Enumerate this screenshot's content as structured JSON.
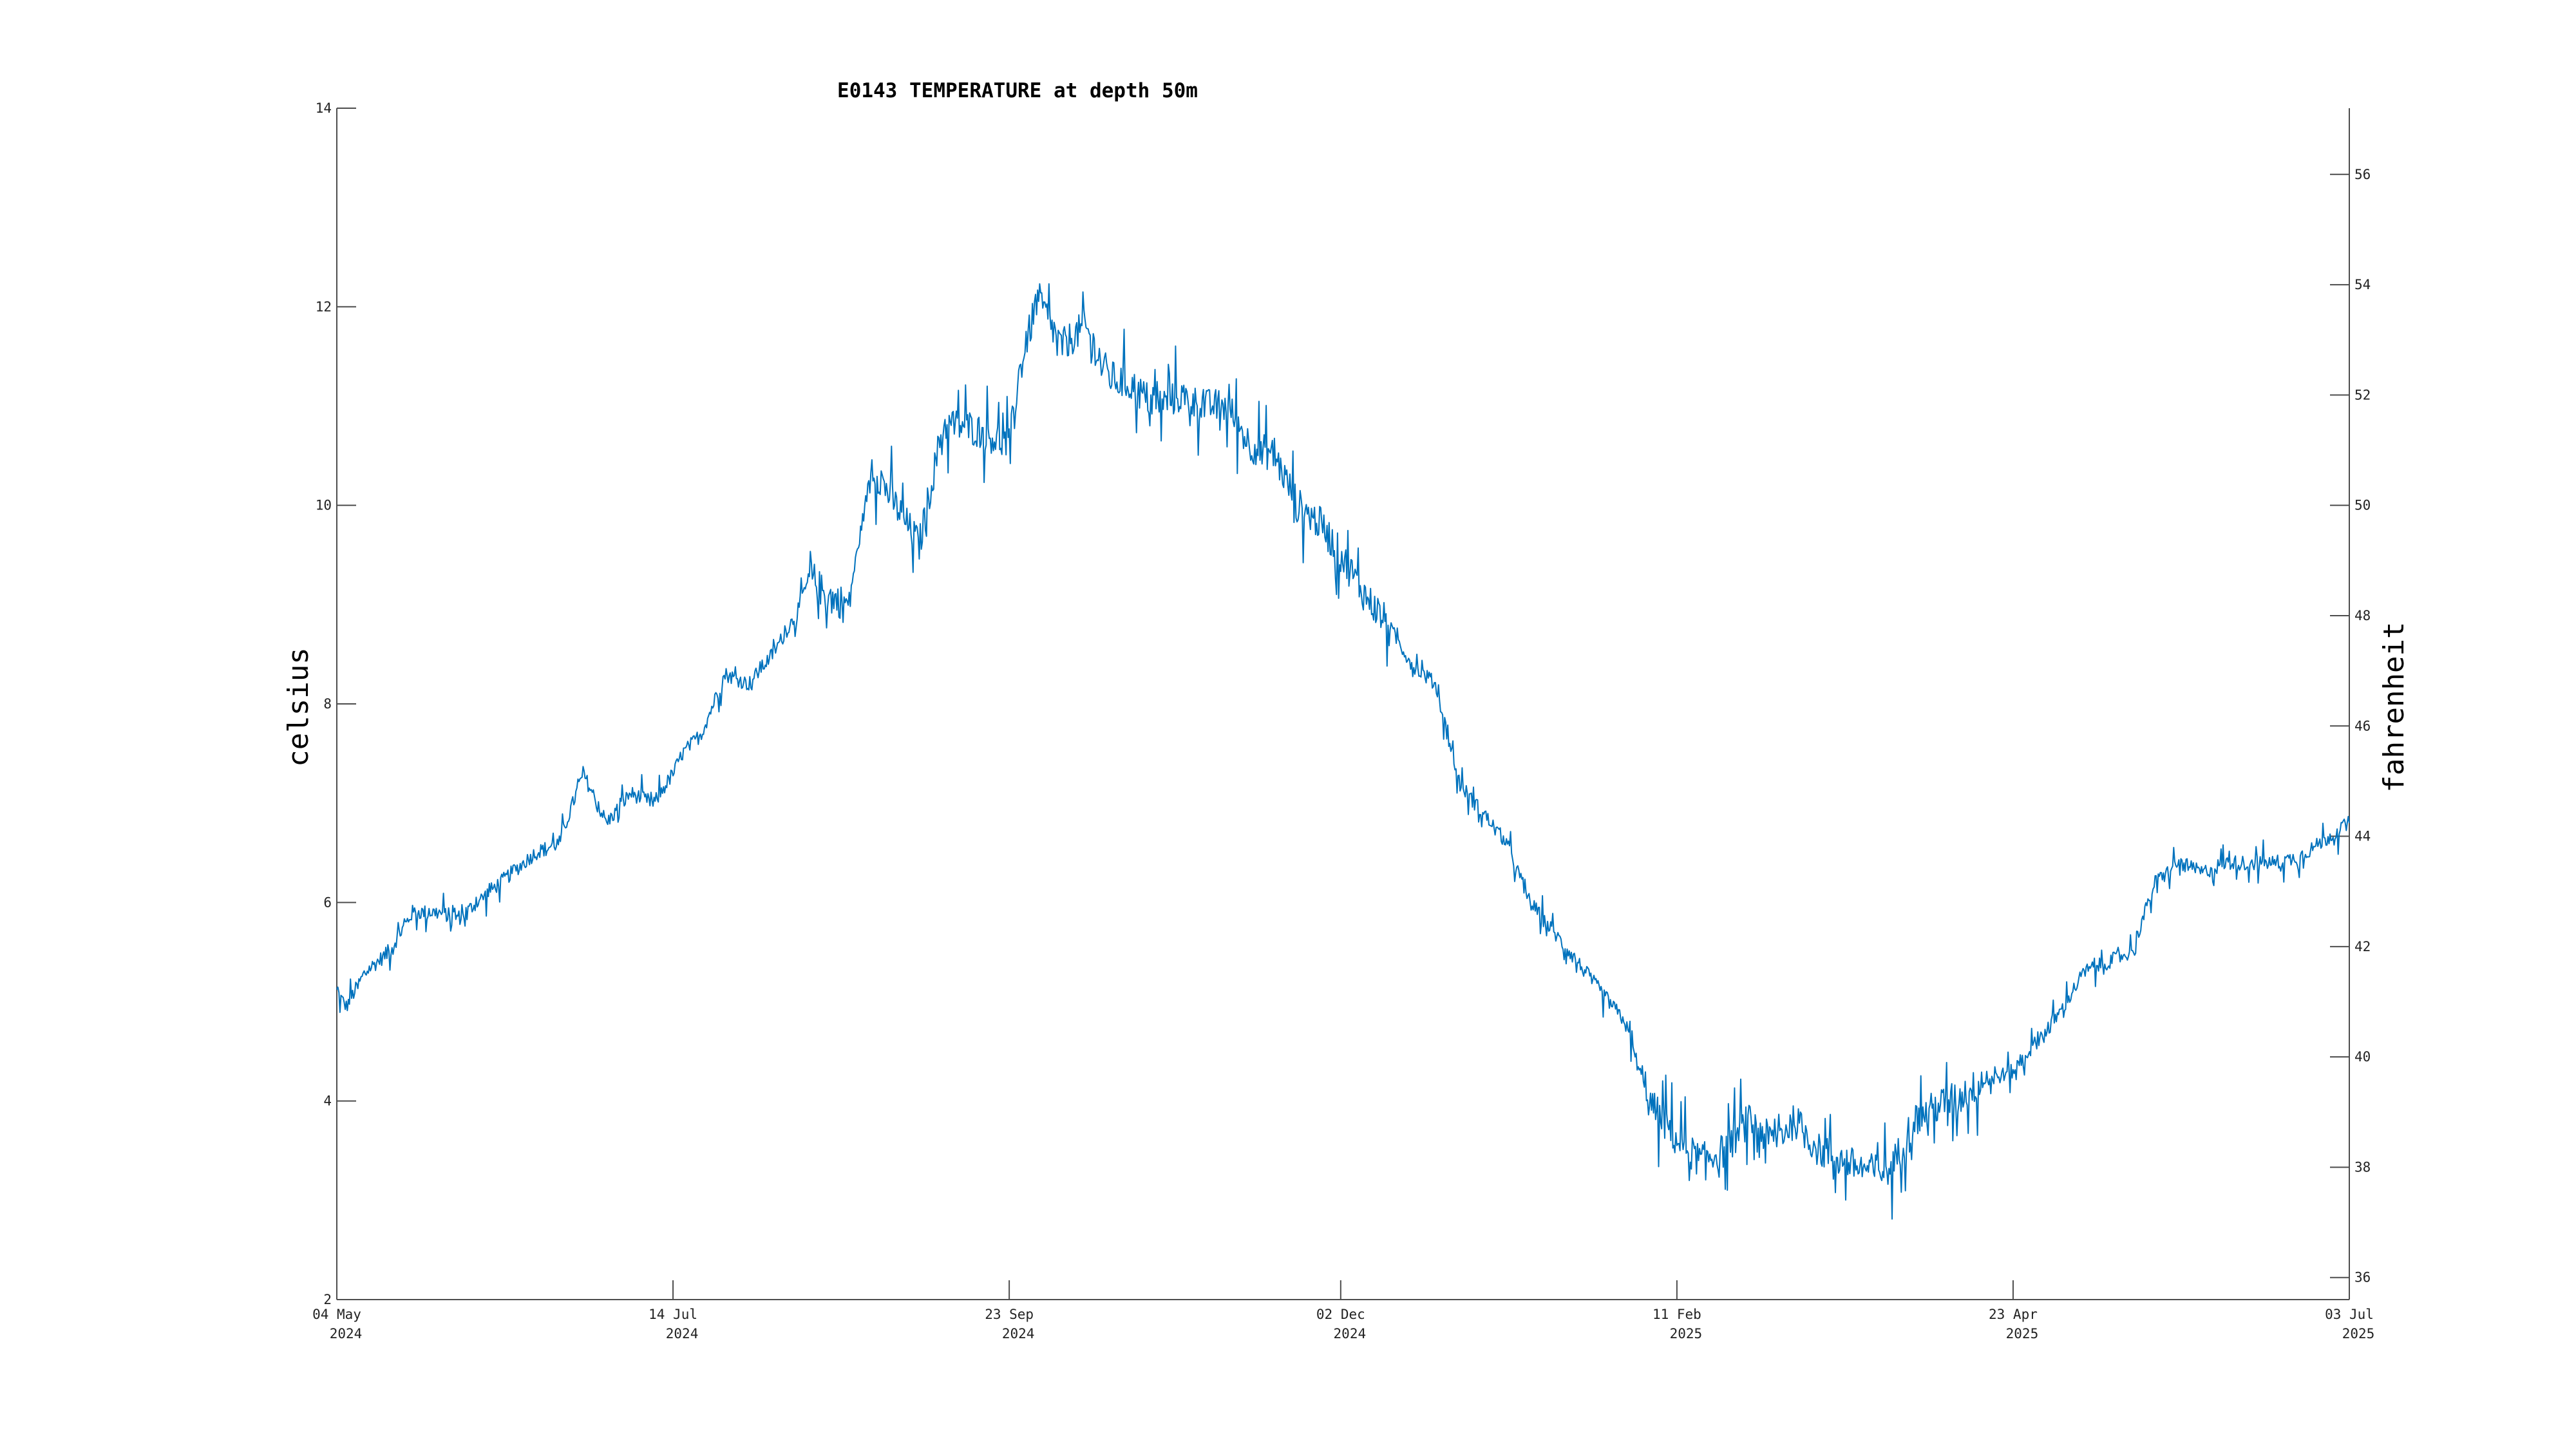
{
  "chart_data": {
    "type": "line",
    "title": "E0143 TEMPERATURE at depth 50m",
    "ylabel": "celsius",
    "y2label": "fahrenheit",
    "xlabel": "",
    "grid": false,
    "ylim": [
      2,
      14
    ],
    "y2lim": [
      35.6,
      57.2
    ],
    "xlim": [
      "2024-05-04",
      "2025-07-03"
    ],
    "yticks": [
      "2",
      "4",
      "6",
      "8",
      "10",
      "12",
      "14"
    ],
    "y2ticks": [
      "36",
      "38",
      "40",
      "42",
      "44",
      "46",
      "48",
      "50",
      "52",
      "54",
      "56"
    ],
    "xticks": [
      {
        "date": "2024-05-04",
        "line1": "04 May",
        "line2": "2024"
      },
      {
        "date": "2024-07-14",
        "line1": "14 Jul",
        "line2": "2024"
      },
      {
        "date": "2024-09-23",
        "line1": "23 Sep",
        "line2": "2024"
      },
      {
        "date": "2024-12-02",
        "line1": "02 Dec",
        "line2": "2024"
      },
      {
        "date": "2025-02-11",
        "line1": "11 Feb",
        "line2": "2025"
      },
      {
        "date": "2025-04-23",
        "line1": "23 Apr",
        "line2": "2025"
      },
      {
        "date": "2025-07-03",
        "line1": "03 Jul",
        "line2": "2025"
      }
    ],
    "series": [
      {
        "color": "#0072bd",
        "x": [
          "2024-05-04",
          "2024-05-06",
          "2024-05-10",
          "2024-05-15",
          "2024-05-20",
          "2024-05-25",
          "2024-05-30",
          "2024-06-05",
          "2024-06-10",
          "2024-06-15",
          "2024-06-20",
          "2024-06-25",
          "2024-06-30",
          "2024-07-05",
          "2024-07-10",
          "2024-07-14",
          "2024-07-16",
          "2024-07-20",
          "2024-07-25",
          "2024-07-30",
          "2024-08-04",
          "2024-08-09",
          "2024-08-12",
          "2024-08-15",
          "2024-08-20",
          "2024-08-25",
          "2024-08-30",
          "2024-09-04",
          "2024-09-09",
          "2024-09-14",
          "2024-09-19",
          "2024-09-23",
          "2024-09-25",
          "2024-09-29",
          "2024-10-04",
          "2024-10-09",
          "2024-10-14",
          "2024-10-19",
          "2024-10-24",
          "2024-10-29",
          "2024-11-03",
          "2024-11-08",
          "2024-11-13",
          "2024-11-18",
          "2024-11-23",
          "2024-11-28",
          "2024-12-02",
          "2024-12-07",
          "2024-12-12",
          "2024-12-17",
          "2024-12-22",
          "2024-12-27",
          "2025-01-01",
          "2025-01-06",
          "2025-01-11",
          "2025-01-16",
          "2025-01-21",
          "2025-01-26",
          "2025-01-31",
          "2025-02-05",
          "2025-02-11",
          "2025-02-16",
          "2025-02-21",
          "2025-02-26",
          "2025-03-03",
          "2025-03-08",
          "2025-03-13",
          "2025-03-18",
          "2025-03-23",
          "2025-03-28",
          "2025-04-02",
          "2025-04-07",
          "2025-04-12",
          "2025-04-17",
          "2025-04-23",
          "2025-04-28",
          "2025-05-03",
          "2025-05-08",
          "2025-05-13",
          "2025-05-18",
          "2025-05-23",
          "2025-05-28",
          "2025-06-02",
          "2025-06-07",
          "2025-06-12",
          "2025-06-17",
          "2025-06-22",
          "2025-06-27",
          "2025-07-03"
        ],
        "y": [
          5.1,
          4.95,
          5.3,
          5.5,
          5.9,
          5.9,
          5.85,
          6.1,
          6.3,
          6.5,
          6.6,
          7.3,
          6.8,
          7.1,
          7.0,
          7.3,
          7.5,
          7.7,
          8.3,
          8.2,
          8.5,
          8.9,
          9.3,
          9.1,
          9.0,
          10.4,
          10.0,
          9.6,
          10.8,
          10.8,
          10.7,
          10.6,
          11.3,
          12.1,
          11.6,
          11.8,
          11.3,
          11.2,
          11.0,
          11.1,
          11.0,
          11.0,
          10.6,
          10.5,
          10.0,
          9.8,
          9.5,
          9.1,
          8.8,
          8.4,
          8.2,
          7.2,
          6.9,
          6.6,
          6.0,
          5.7,
          5.4,
          5.1,
          4.8,
          4.0,
          3.6,
          3.4,
          3.5,
          3.8,
          3.6,
          3.8,
          3.5,
          3.4,
          3.3,
          3.3,
          3.8,
          3.95,
          4.05,
          4.2,
          4.3,
          4.6,
          4.9,
          5.3,
          5.4,
          5.5,
          6.2,
          6.4,
          6.3,
          6.4,
          6.4,
          6.4,
          6.45,
          6.6,
          6.8
        ]
      }
    ]
  }
}
